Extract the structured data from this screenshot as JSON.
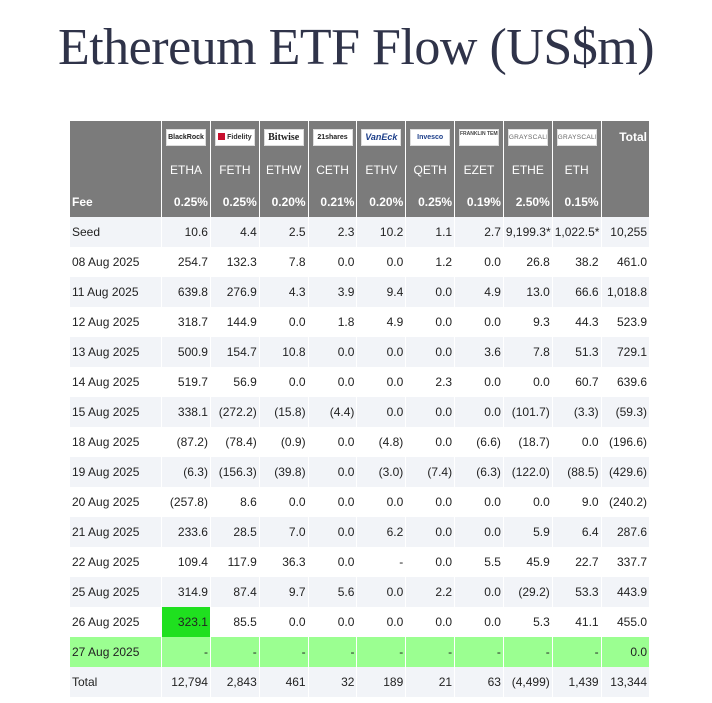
{
  "title": "Ethereum ETF Flow (US$m)",
  "issuers": [
    "BlackRock",
    "Fidelity",
    "Bitwise",
    "21shares",
    "VanEck",
    "Invesco",
    "FRANKLIN TEMPLETON",
    "GRAYSCALE",
    "GRAYSCALE"
  ],
  "total_label": "Total",
  "tickers": [
    "ETHA",
    "FETH",
    "ETHW",
    "CETH",
    "ETHV",
    "QETH",
    "EZET",
    "ETHE",
    "ETH"
  ],
  "fee_label": "Fee",
  "fees": [
    "0.25%",
    "0.25%",
    "0.20%",
    "0.21%",
    "0.20%",
    "0.25%",
    "0.19%",
    "2.50%",
    "0.15%"
  ],
  "rows": [
    {
      "date": "Seed",
      "values": [
        "10.6",
        "4.4",
        "2.5",
        "2.3",
        "10.2",
        "1.1",
        "2.7",
        "9,199.3*",
        "1,022.5*",
        "10,255"
      ]
    },
    {
      "date": "08 Aug 2025",
      "values": [
        "254.7",
        "132.3",
        "7.8",
        "0.0",
        "0.0",
        "1.2",
        "0.0",
        "26.8",
        "38.2",
        "461.0"
      ]
    },
    {
      "date": "11 Aug 2025",
      "values": [
        "639.8",
        "276.9",
        "4.3",
        "3.9",
        "9.4",
        "0.0",
        "4.9",
        "13.0",
        "66.6",
        "1,018.8"
      ]
    },
    {
      "date": "12 Aug 2025",
      "values": [
        "318.7",
        "144.9",
        "0.0",
        "1.8",
        "4.9",
        "0.0",
        "0.0",
        "9.3",
        "44.3",
        "523.9"
      ]
    },
    {
      "date": "13 Aug 2025",
      "values": [
        "500.9",
        "154.7",
        "10.8",
        "0.0",
        "0.0",
        "0.0",
        "3.6",
        "7.8",
        "51.3",
        "729.1"
      ]
    },
    {
      "date": "14 Aug 2025",
      "values": [
        "519.7",
        "56.9",
        "0.0",
        "0.0",
        "0.0",
        "2.3",
        "0.0",
        "0.0",
        "60.7",
        "639.6"
      ]
    },
    {
      "date": "15 Aug 2025",
      "values": [
        "338.1",
        "(272.2)",
        "(15.8)",
        "(4.4)",
        "0.0",
        "0.0",
        "0.0",
        "(101.7)",
        "(3.3)",
        "(59.3)"
      ]
    },
    {
      "date": "18 Aug 2025",
      "values": [
        "(87.2)",
        "(78.4)",
        "(0.9)",
        "0.0",
        "(4.8)",
        "0.0",
        "(6.6)",
        "(18.7)",
        "0.0",
        "(196.6)"
      ]
    },
    {
      "date": "19 Aug 2025",
      "values": [
        "(6.3)",
        "(156.3)",
        "(39.8)",
        "0.0",
        "(3.0)",
        "(7.4)",
        "(6.3)",
        "(122.0)",
        "(88.5)",
        "(429.6)"
      ]
    },
    {
      "date": "20 Aug 2025",
      "values": [
        "(257.8)",
        "8.6",
        "0.0",
        "0.0",
        "0.0",
        "0.0",
        "0.0",
        "0.0",
        "9.0",
        "(240.2)"
      ]
    },
    {
      "date": "21 Aug 2025",
      "values": [
        "233.6",
        "28.5",
        "7.0",
        "0.0",
        "6.2",
        "0.0",
        "0.0",
        "5.9",
        "6.4",
        "287.6"
      ]
    },
    {
      "date": "22 Aug 2025",
      "values": [
        "109.4",
        "117.9",
        "36.3",
        "0.0",
        "-",
        "0.0",
        "5.5",
        "45.9",
        "22.7",
        "337.7"
      ]
    },
    {
      "date": "25 Aug 2025",
      "values": [
        "314.9",
        "87.4",
        "9.7",
        "5.6",
        "0.0",
        "2.2",
        "0.0",
        "(29.2)",
        "53.3",
        "443.9"
      ]
    },
    {
      "date": "26 Aug 2025",
      "values": [
        "323.1",
        "85.5",
        "0.0",
        "0.0",
        "0.0",
        "0.0",
        "0.0",
        "5.3",
        "41.1",
        "455.0"
      ]
    },
    {
      "date": "27 Aug 2025",
      "values": [
        "-",
        "-",
        "-",
        "-",
        "-",
        "-",
        "-",
        "-",
        "-",
        "0.0"
      ]
    },
    {
      "date": "Total",
      "values": [
        "12,794",
        "2,843",
        "461",
        "32",
        "189",
        "21",
        "63",
        "(4,499)",
        "1,439",
        "13,344"
      ]
    }
  ],
  "colors": {
    "header_bg": "#7b7b7b",
    "negative": "#d00000",
    "highlight": "#1fe01f",
    "last_row": "#9bff91",
    "stripe": "#f2f4f8"
  }
}
